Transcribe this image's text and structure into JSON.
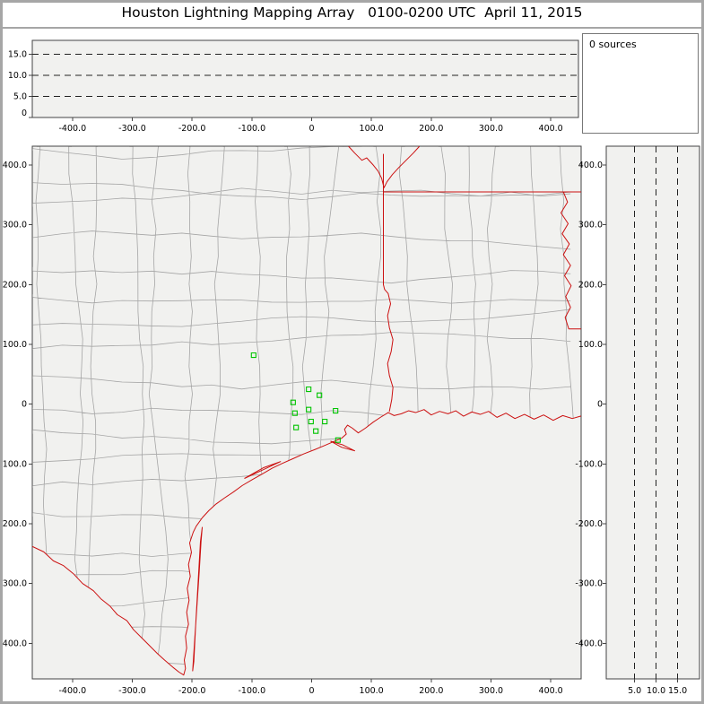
{
  "title": "Houston Lightning Mapping Array   0100-0200 UTC  April 11, 2015",
  "sources_counter": "0 sources",
  "colors": {
    "state_boundary": "#cc1111",
    "county_line": "#a5a5a5",
    "station_marker": "#00c400",
    "plot_bg": "#f1f1ef",
    "axis_line": "#444444",
    "grid_line": "#222222",
    "frame": "#a6a6a6"
  },
  "chart_data": [
    {
      "id": "upper_altitude_panel",
      "type": "scatter",
      "points": [],
      "x_ticks": {
        "values": [
          -400,
          -300,
          -200,
          -100,
          0,
          100,
          200,
          300,
          400
        ],
        "labels": [
          "-400.0",
          "-300.0",
          "-200.0",
          "-100.0",
          "0",
          "100.0",
          "200.0",
          "300.0",
          "400.0"
        ]
      },
      "y_ticks": {
        "values": [
          0,
          5,
          10,
          15
        ],
        "labels": [
          "0",
          "5.0",
          "10.0",
          "15.0"
        ]
      },
      "y_gridlines": [
        5,
        10,
        15
      ],
      "xlim": [
        -467.2,
        446.3
      ],
      "ylim": [
        0,
        18.3
      ],
      "grid": "dashed",
      "legend": "none"
    },
    {
      "id": "plan_view_map",
      "type": "scatter",
      "points": [],
      "stations": [
        [
          -97,
          82
        ],
        [
          -5,
          25
        ],
        [
          13,
          15
        ],
        [
          -31,
          3
        ],
        [
          -5,
          -9
        ],
        [
          -28,
          -15
        ],
        [
          -1,
          -29
        ],
        [
          22,
          -29
        ],
        [
          40,
          -11
        ],
        [
          -26,
          -39
        ],
        [
          7,
          -45
        ],
        [
          44,
          -60
        ]
      ],
      "x_ticks": {
        "values": [
          -400,
          -300,
          -200,
          -100,
          0,
          100,
          200,
          300,
          400
        ],
        "labels": [
          "-400.0",
          "-300.0",
          "-200.0",
          "-100.0",
          "0",
          "100.0",
          "200.0",
          "300.0",
          "400.0"
        ]
      },
      "y_ticks": {
        "values": [
          400,
          300,
          200,
          100,
          0,
          -100,
          -200,
          -300,
          -400
        ],
        "labels": [
          "400.0",
          "300.0",
          "200.0",
          "100.0",
          "0",
          "-100.0",
          "-200.0",
          "-300.0",
          "-400.0"
        ]
      },
      "xlim": [
        -467.2,
        450.8
      ],
      "ylim": [
        -459.4,
        431.5
      ],
      "grid": "off",
      "legend": "none"
    },
    {
      "id": "right_altitude_panel",
      "type": "scatter",
      "points": [],
      "x_ticks": {
        "values": [
          5,
          10,
          15
        ],
        "labels": [
          "5.0",
          "10.0",
          "15.0"
        ]
      },
      "y_ticks": {
        "values": [
          400,
          300,
          200,
          100,
          0,
          -100,
          -200,
          -300,
          -400
        ],
        "labels": [
          "400.0",
          "300.0",
          "200.0",
          "100.0",
          "0",
          "-100.0",
          "-200.0",
          "-300.0",
          "-400.0"
        ]
      },
      "x_gridlines": [
        5,
        10,
        15
      ],
      "xlim": [
        -1.6,
        20.1
      ],
      "ylim": [
        -459.4,
        431.5
      ],
      "grid": "dashed",
      "legend": "none"
    }
  ]
}
